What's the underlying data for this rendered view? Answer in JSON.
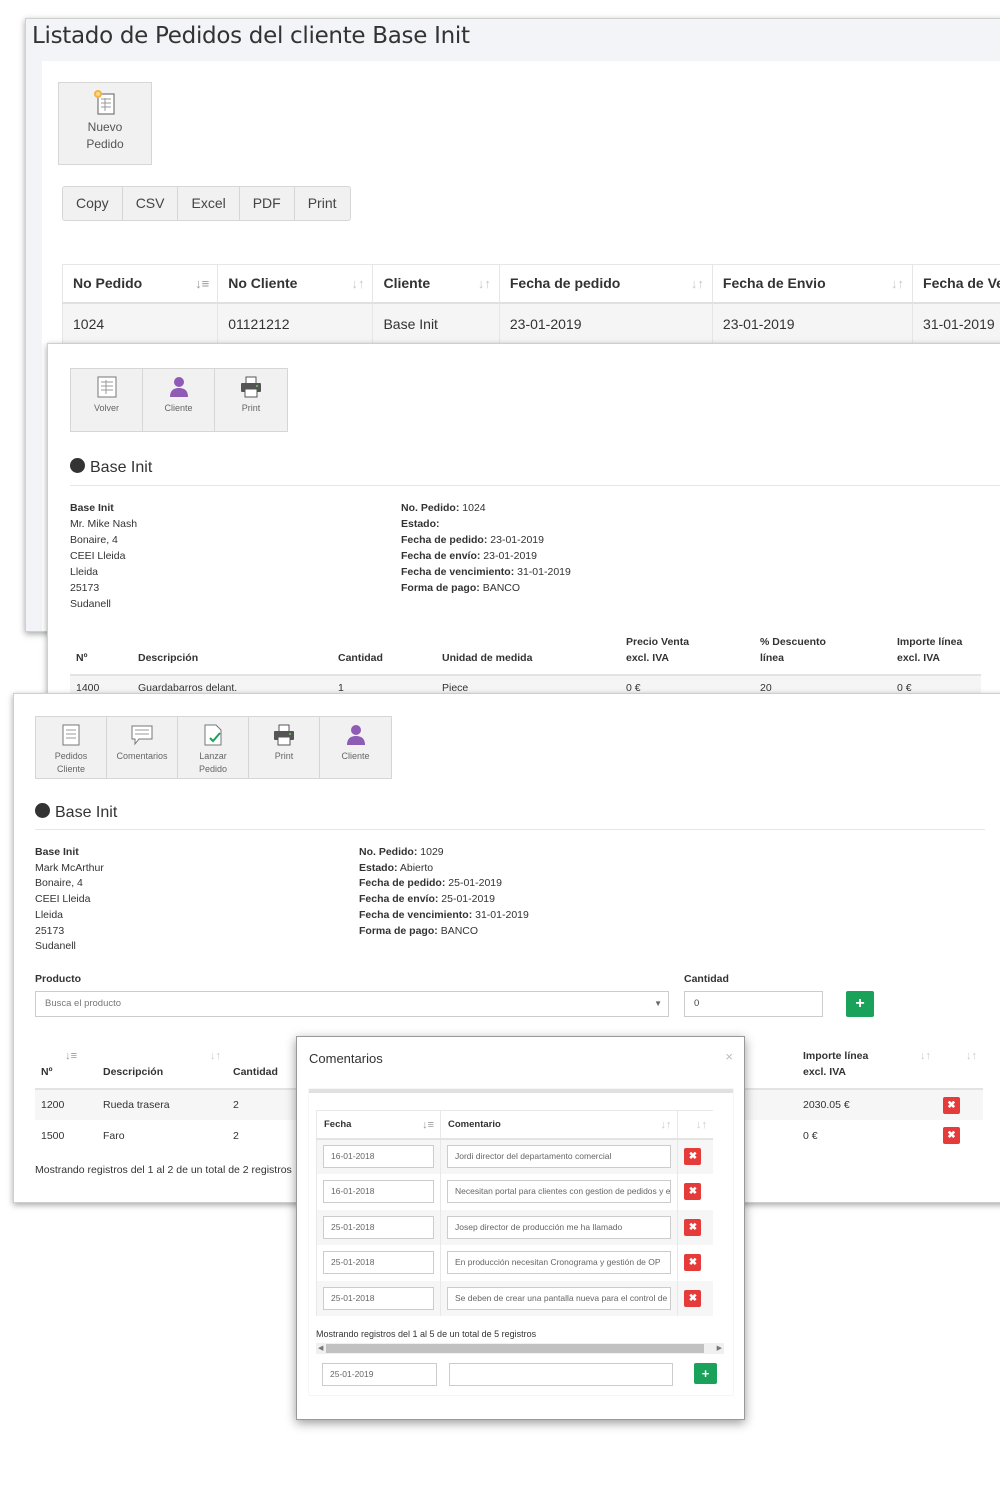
{
  "panel1": {
    "title": "Listado de Pedidos del cliente Base Init",
    "new_order": {
      "line1": "Nuevo",
      "line2": "Pedido"
    },
    "export_buttons": [
      "Copy",
      "CSV",
      "Excel",
      "PDF",
      "Print"
    ],
    "table": {
      "headers": [
        "No Pedido",
        "No Cliente",
        "Cliente",
        "Fecha de pedido",
        "Fecha de Envio",
        "Fecha de Ve"
      ],
      "rows": [
        [
          "1024",
          "01121212",
          "Base Init",
          "23-01-2019",
          "23-01-2019",
          "31-01-2019"
        ]
      ]
    }
  },
  "panel2": {
    "toolbar": [
      "Volver",
      "Cliente",
      "Print"
    ],
    "section_title": "Base Init",
    "customer": [
      "Base Init",
      "Mr. Mike Nash",
      "Bonaire, 4",
      "CEEI Lleida",
      "Lleida",
      "25173",
      "Sudanell"
    ],
    "order_info": [
      {
        "label": "No. Pedido:",
        "value": "1024"
      },
      {
        "label": "Estado:",
        "value": ""
      },
      {
        "label": "Fecha de pedido:",
        "value": "23-01-2019"
      },
      {
        "label": "Fecha de envío:",
        "value": "23-01-2019"
      },
      {
        "label": "Fecha de vencimiento:",
        "value": "31-01-2019"
      },
      {
        "label": "Forma de pago:",
        "value": "BANCO"
      }
    ],
    "lines_headers": [
      "Nº",
      "Descripción",
      "Cantidad",
      "Unidad de medida",
      "Precio Venta",
      "excl. IVA",
      "% Descuento",
      "línea",
      "Importe línea",
      "excl. IVA"
    ],
    "lines": [
      [
        "1400",
        "Guardabarros delant.",
        "1",
        "Piece",
        "0 €",
        "20",
        "0 €"
      ]
    ]
  },
  "panel3": {
    "toolbar": [
      {
        "line1": "Pedidos",
        "line2": "Cliente"
      },
      {
        "line1": "Comentarios",
        "line2": ""
      },
      {
        "line1": "Lanzar",
        "line2": "Pedido"
      },
      {
        "line1": "Print",
        "line2": ""
      },
      {
        "line1": "Cliente",
        "line2": ""
      }
    ],
    "section_title": "Base Init",
    "customer": [
      "Base Init",
      "Mark McArthur",
      "Bonaire, 4",
      "CEEI Lleida",
      "Lleida",
      "25173",
      "Sudanell"
    ],
    "order_info": [
      {
        "label": "No. Pedido:",
        "value": "1029"
      },
      {
        "label": "Estado:",
        "value": "Abierto"
      },
      {
        "label": "Fecha de pedido:",
        "value": "25-01-2019"
      },
      {
        "label": "Fecha de envío:",
        "value": "25-01-2019"
      },
      {
        "label": "Fecha de vencimiento:",
        "value": "31-01-2019"
      },
      {
        "label": "Forma de pago:",
        "value": "BANCO"
      }
    ],
    "product_label": "Producto",
    "product_placeholder": "Busca el producto",
    "qty_label": "Cantidad",
    "qty_value": "0",
    "add_symbol": "+",
    "lines_headers": {
      "num": "Nº",
      "desc": "Descripción",
      "qty": "Cantidad",
      "amount1": "Importe línea",
      "amount2": "excl. IVA"
    },
    "lines": [
      {
        "num": "1200",
        "desc": "Rueda trasera",
        "qty": "2",
        "amount": "2030.05 €"
      },
      {
        "num": "1500",
        "desc": "Faro",
        "qty": "2",
        "amount": "0 €"
      }
    ],
    "footer_info": "Mostrando registros del 1 al 2 de un total de 2 registros"
  },
  "modal": {
    "title": "Comentarios",
    "close": "×",
    "headers": [
      "Fecha",
      "Comentario"
    ],
    "rows": [
      {
        "date": "16-01-2018",
        "comment": "Jordi director del departamento comercial"
      },
      {
        "date": "16-01-2018",
        "comment": "Necesitan portal para clientes con gestion de pedidos y e"
      },
      {
        "date": "25-01-2018",
        "comment": "Josep director de producción me ha llamado"
      },
      {
        "date": "25-01-2018",
        "comment": "En producción necesitan Cronograma y gestión de OP"
      },
      {
        "date": "25-01-2018",
        "comment": "Se deben de crear una pantalla nueva para el control de"
      }
    ],
    "footer_info": "Mostrando registros del 1 al 5 de un total de 5 registros",
    "new_date": "25-01-2019",
    "new_comment": "",
    "add_symbol": "+"
  },
  "colors": {
    "green": "#1aa15a",
    "red": "#e53b3b",
    "purple_icon": "#8e5bb5"
  }
}
